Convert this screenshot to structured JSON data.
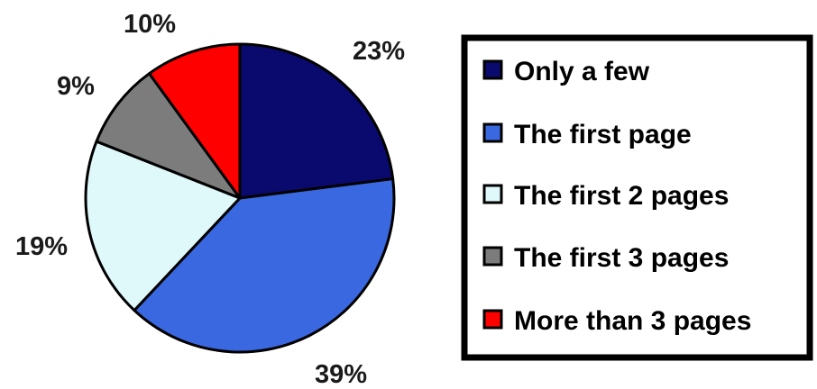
{
  "chart_data": {
    "type": "pie",
    "title": "",
    "categories": [
      "Only a few",
      "The first page",
      "The first 2 pages",
      "The first 3 pages",
      "More than 3 pages"
    ],
    "values": [
      23,
      39,
      19,
      9,
      10
    ],
    "value_labels": [
      "23%",
      "39%",
      "19%",
      "9%",
      "10%"
    ],
    "colors": [
      "#0a0a6e",
      "#3a68e0",
      "#dff8fa",
      "#7c7c7c",
      "#ff0000"
    ],
    "start_angle": "12 o'clock",
    "direction": "clockwise",
    "legend": {
      "position": "right",
      "entries": [
        {
          "label": "Only a few",
          "color": "#0a0a6e"
        },
        {
          "label": "The first page",
          "color": "#3a68e0"
        },
        {
          "label": "The first 2 pages",
          "color": "#dff8fa"
        },
        {
          "label": "The first 3 pages",
          "color": "#7c7c7c"
        },
        {
          "label": "More than 3 pages",
          "color": "#ff0000"
        }
      ]
    }
  }
}
